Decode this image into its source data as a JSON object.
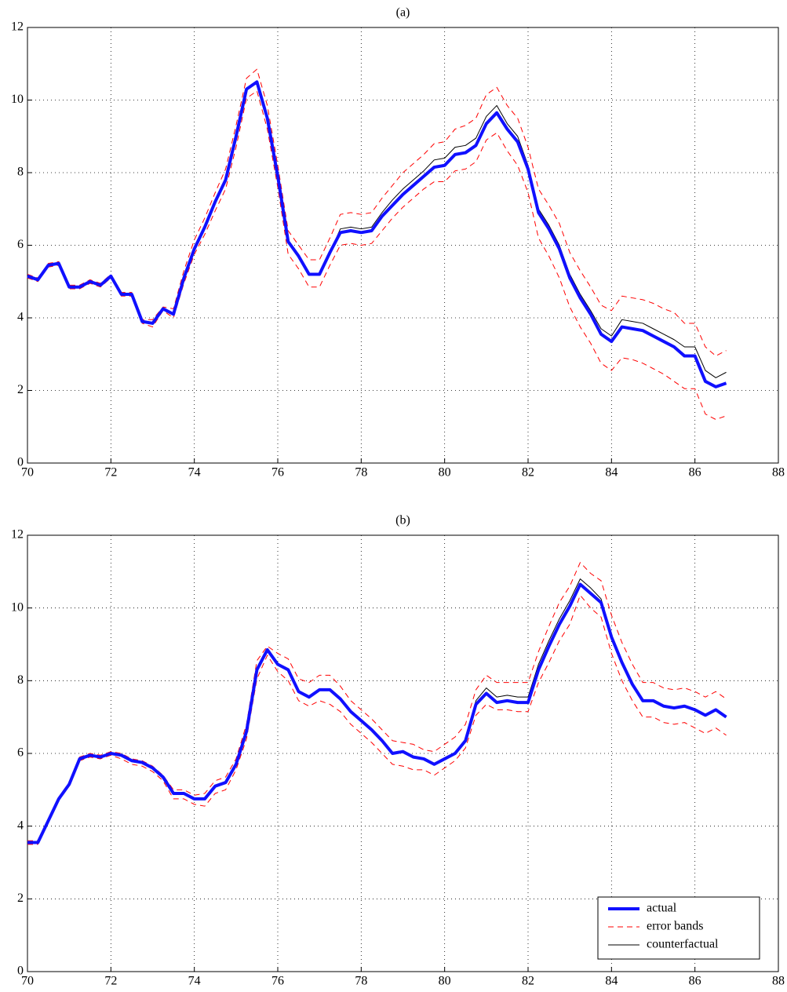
{
  "chart_data": [
    {
      "type": "line",
      "title": "(a)",
      "x": [
        70,
        70.25,
        70.5,
        70.75,
        71,
        71.25,
        71.5,
        71.75,
        72,
        72.25,
        72.5,
        72.75,
        73,
        73.25,
        73.5,
        73.75,
        74,
        74.25,
        74.5,
        74.75,
        75,
        75.25,
        75.5,
        75.75,
        76,
        76.25,
        76.5,
        76.75,
        77,
        77.25,
        77.5,
        77.75,
        78,
        78.25,
        78.5,
        78.75,
        79,
        79.25,
        79.5,
        79.75,
        80,
        80.25,
        80.5,
        80.75,
        81,
        81.25,
        81.5,
        81.75,
        82,
        82.25,
        82.5,
        82.75,
        83,
        83.25,
        83.5,
        83.75,
        84,
        84.25,
        84.5,
        84.75,
        85,
        85.25,
        85.5,
        85.75,
        86,
        86.25,
        86.5,
        86.75
      ],
      "series": [
        {
          "name": "actual",
          "color": "#1010ff",
          "width": 4,
          "values": [
            5.15,
            5.05,
            5.45,
            5.5,
            4.85,
            4.85,
            5.0,
            4.9,
            5.15,
            4.65,
            4.65,
            3.9,
            3.85,
            4.25,
            4.1,
            5.1,
            5.9,
            6.5,
            7.2,
            7.8,
            9.0,
            10.3,
            10.5,
            9.5,
            7.9,
            6.1,
            5.7,
            5.2,
            5.2,
            5.8,
            6.35,
            6.4,
            6.35,
            6.4,
            6.8,
            7.1,
            7.4,
            7.65,
            7.9,
            8.15,
            8.2,
            8.5,
            8.55,
            8.75,
            9.35,
            9.65,
            9.2,
            8.85,
            8.1,
            6.9,
            6.45,
            5.9,
            5.1,
            4.55,
            4.1,
            3.55,
            3.35,
            3.75,
            3.7,
            3.65,
            3.5,
            3.35,
            3.2,
            2.95,
            2.95,
            2.25,
            2.1,
            2.2
          ]
        },
        {
          "name": "error bands",
          "color": "#ff0000",
          "width": 1,
          "dash": true,
          "values": [
            5.2,
            5.1,
            5.5,
            5.55,
            4.9,
            4.9,
            5.05,
            4.95,
            5.2,
            4.7,
            4.7,
            3.95,
            3.95,
            4.3,
            4.25,
            5.3,
            6.15,
            6.75,
            7.45,
            8.1,
            9.3,
            10.6,
            10.85,
            9.85,
            8.2,
            6.4,
            6.0,
            5.6,
            5.6,
            6.2,
            6.85,
            6.9,
            6.85,
            6.9,
            7.3,
            7.65,
            8.0,
            8.25,
            8.5,
            8.8,
            8.85,
            9.2,
            9.3,
            9.5,
            10.15,
            10.35,
            9.85,
            9.5,
            8.7,
            7.55,
            7.1,
            6.6,
            5.8,
            5.3,
            4.85,
            4.35,
            4.2,
            4.6,
            4.55,
            4.5,
            4.4,
            4.25,
            4.15,
            3.85,
            3.85,
            3.2,
            2.95,
            3.1
          ],
          "lower": [
            5.1,
            5.0,
            5.4,
            5.45,
            4.8,
            4.8,
            4.95,
            4.85,
            5.1,
            4.6,
            4.6,
            3.85,
            3.75,
            4.2,
            4.0,
            4.95,
            5.75,
            6.3,
            6.95,
            7.55,
            8.7,
            10.05,
            10.25,
            9.2,
            7.6,
            5.75,
            5.35,
            4.85,
            4.85,
            5.45,
            6.0,
            6.05,
            6.0,
            6.05,
            6.4,
            6.75,
            7.05,
            7.3,
            7.55,
            7.75,
            7.75,
            8.05,
            8.1,
            8.3,
            8.9,
            9.1,
            8.6,
            8.2,
            7.45,
            6.2,
            5.7,
            5.1,
            4.3,
            3.75,
            3.3,
            2.75,
            2.55,
            2.9,
            2.85,
            2.75,
            2.6,
            2.45,
            2.25,
            2.05,
            2.05,
            1.35,
            1.2,
            1.3
          ]
        },
        {
          "name": "counterfactual",
          "color": "#000000",
          "width": 1,
          "values": [
            5.15,
            5.05,
            5.45,
            5.5,
            4.85,
            4.85,
            5.0,
            4.9,
            5.15,
            4.65,
            4.65,
            3.9,
            3.85,
            4.25,
            4.1,
            5.1,
            5.9,
            6.5,
            7.2,
            7.8,
            9.0,
            10.3,
            10.5,
            9.5,
            7.9,
            6.1,
            5.7,
            5.2,
            5.2,
            5.8,
            6.45,
            6.5,
            6.45,
            6.5,
            6.9,
            7.25,
            7.55,
            7.8,
            8.05,
            8.35,
            8.4,
            8.7,
            8.75,
            8.95,
            9.55,
            9.85,
            9.35,
            9.0,
            8.2,
            7.0,
            6.55,
            6.0,
            5.2,
            4.65,
            4.2,
            3.7,
            3.5,
            3.95,
            3.9,
            3.85,
            3.7,
            3.55,
            3.4,
            3.2,
            3.2,
            2.55,
            2.35,
            2.5
          ]
        }
      ],
      "xlim": [
        70,
        88
      ],
      "xticks": [
        70,
        72,
        74,
        76,
        78,
        80,
        82,
        84,
        86,
        88
      ],
      "ylim": [
        0,
        12
      ],
      "yticks": [
        0,
        2,
        4,
        6,
        8,
        10,
        12
      ],
      "grid": true
    },
    {
      "type": "line",
      "title": "(b)",
      "x": [
        70,
        70.25,
        70.5,
        70.75,
        71,
        71.25,
        71.5,
        71.75,
        72,
        72.25,
        72.5,
        72.75,
        73,
        73.25,
        73.5,
        73.75,
        74,
        74.25,
        74.5,
        74.75,
        75,
        75.25,
        75.5,
        75.75,
        76,
        76.25,
        76.5,
        76.75,
        77,
        77.25,
        77.5,
        77.75,
        78,
        78.25,
        78.5,
        78.75,
        79,
        79.25,
        79.5,
        79.75,
        80,
        80.25,
        80.5,
        80.75,
        81,
        81.25,
        81.5,
        81.75,
        82,
        82.25,
        82.5,
        82.75,
        83,
        83.25,
        83.5,
        83.75,
        84,
        84.25,
        84.5,
        84.75,
        85,
        85.25,
        85.5,
        85.75,
        86,
        86.25,
        86.5,
        86.75
      ],
      "series": [
        {
          "name": "actual",
          "color": "#1010ff",
          "width": 4,
          "values": [
            3.55,
            3.55,
            4.15,
            4.75,
            5.15,
            5.85,
            5.95,
            5.9,
            6.0,
            5.95,
            5.8,
            5.75,
            5.6,
            5.35,
            4.9,
            4.9,
            4.75,
            4.75,
            5.1,
            5.2,
            5.7,
            6.6,
            8.3,
            8.85,
            8.45,
            8.3,
            7.7,
            7.55,
            7.75,
            7.75,
            7.5,
            7.15,
            6.9,
            6.65,
            6.35,
            6.0,
            6.05,
            5.9,
            5.85,
            5.7,
            5.85,
            6.0,
            6.35,
            7.35,
            7.65,
            7.4,
            7.45,
            7.4,
            7.4,
            8.3,
            8.95,
            9.55,
            10.05,
            10.65,
            10.4,
            10.15,
            9.2,
            8.5,
            7.9,
            7.45,
            7.45,
            7.3,
            7.25,
            7.3,
            7.2,
            7.05,
            7.2,
            7.0
          ]
        },
        {
          "name": "error bands",
          "color": "#ff0000",
          "width": 1,
          "dash": true,
          "values": [
            3.6,
            3.6,
            4.2,
            4.8,
            5.2,
            5.9,
            6.0,
            5.95,
            6.05,
            6.0,
            5.85,
            5.8,
            5.65,
            5.4,
            5.0,
            5.0,
            4.85,
            4.9,
            5.25,
            5.35,
            5.85,
            6.8,
            8.55,
            8.95,
            8.75,
            8.6,
            8.05,
            7.95,
            8.15,
            8.15,
            7.85,
            7.45,
            7.2,
            6.95,
            6.65,
            6.35,
            6.3,
            6.25,
            6.1,
            6.05,
            6.25,
            6.45,
            6.8,
            7.75,
            8.15,
            7.95,
            7.95,
            7.95,
            7.95,
            8.8,
            9.5,
            10.15,
            10.6,
            11.25,
            10.95,
            10.75,
            9.8,
            9.05,
            8.45,
            7.95,
            7.95,
            7.8,
            7.75,
            7.8,
            7.7,
            7.55,
            7.7,
            7.5
          ],
          "lower": [
            3.5,
            3.5,
            4.1,
            4.7,
            5.1,
            5.8,
            5.9,
            5.85,
            5.95,
            5.85,
            5.7,
            5.65,
            5.5,
            5.25,
            4.75,
            4.75,
            4.6,
            4.55,
            4.9,
            5.0,
            5.55,
            6.4,
            8.05,
            8.7,
            8.25,
            8.0,
            7.45,
            7.3,
            7.45,
            7.35,
            7.15,
            6.8,
            6.55,
            6.3,
            6.0,
            5.7,
            5.65,
            5.55,
            5.55,
            5.4,
            5.6,
            5.8,
            6.15,
            7.05,
            7.35,
            7.2,
            7.2,
            7.15,
            7.15,
            7.95,
            8.5,
            9.1,
            9.55,
            10.35,
            10.0,
            9.75,
            8.75,
            8.0,
            7.45,
            7.0,
            7.0,
            6.85,
            6.8,
            6.85,
            6.7,
            6.55,
            6.7,
            6.5
          ]
        },
        {
          "name": "counterfactual",
          "color": "#000000",
          "width": 1,
          "values": [
            3.55,
            3.55,
            4.15,
            4.75,
            5.15,
            5.85,
            5.95,
            5.9,
            6.0,
            5.95,
            5.8,
            5.75,
            5.6,
            5.35,
            4.9,
            4.9,
            4.75,
            4.75,
            5.1,
            5.2,
            5.7,
            6.6,
            8.3,
            8.85,
            8.45,
            8.3,
            7.7,
            7.55,
            7.75,
            7.75,
            7.5,
            7.15,
            6.9,
            6.65,
            6.35,
            6.0,
            6.05,
            5.9,
            5.85,
            5.7,
            5.85,
            6.0,
            6.35,
            7.45,
            7.8,
            7.55,
            7.6,
            7.55,
            7.55,
            8.45,
            9.1,
            9.7,
            10.2,
            10.8,
            10.55,
            10.25,
            9.2,
            8.5,
            7.9,
            7.45,
            7.45,
            7.3,
            7.25,
            7.3,
            7.2,
            7.05,
            7.2,
            7.0
          ]
        }
      ],
      "xlim": [
        70,
        88
      ],
      "xticks": [
        70,
        72,
        74,
        76,
        78,
        80,
        82,
        84,
        86,
        88
      ],
      "ylim": [
        0,
        12
      ],
      "yticks": [
        0,
        2,
        4,
        6,
        8,
        10,
        12
      ],
      "grid": true,
      "legend": "lower right"
    }
  ]
}
